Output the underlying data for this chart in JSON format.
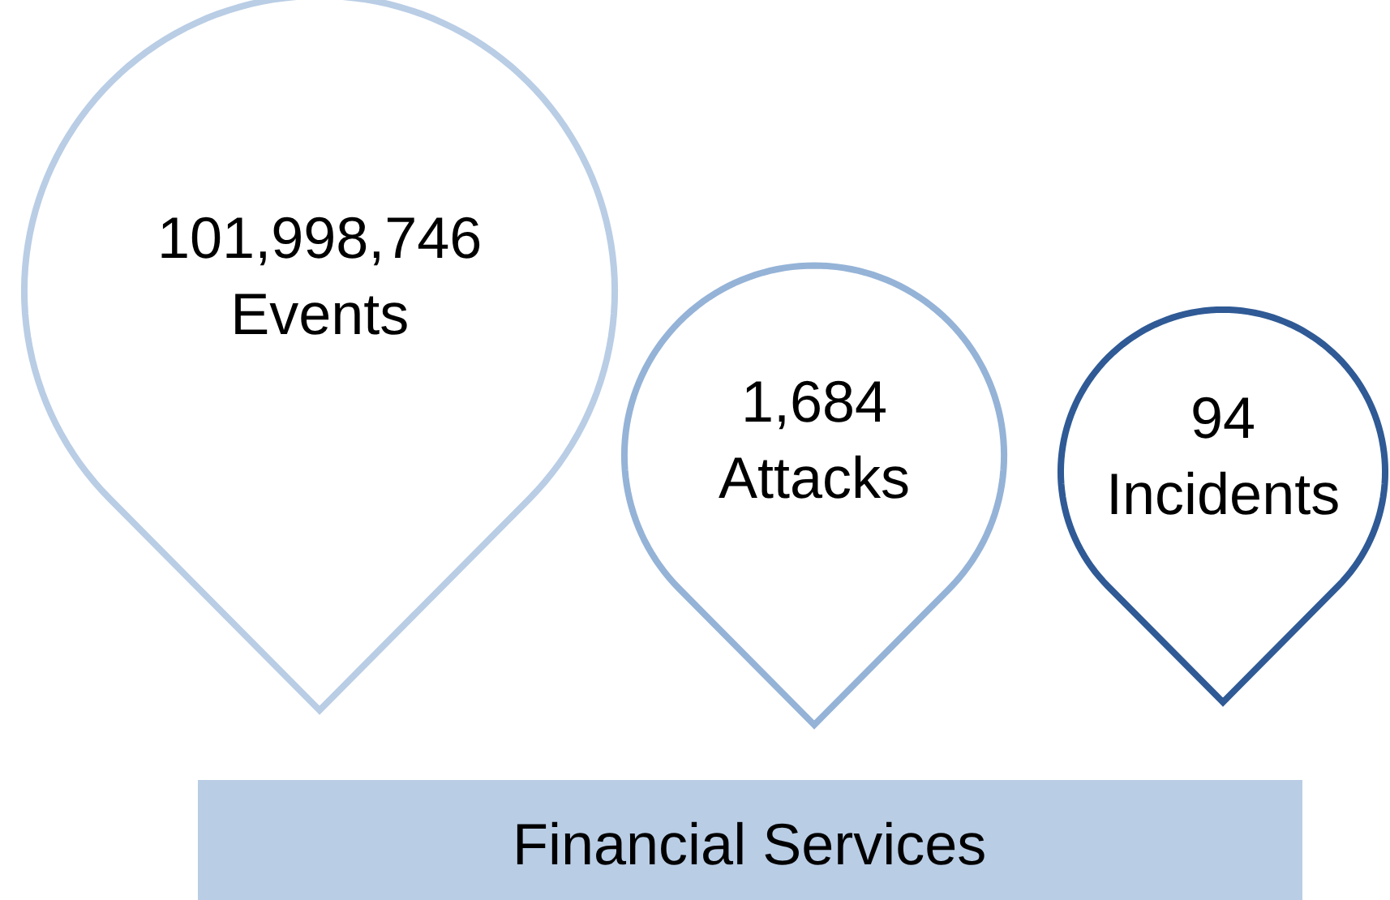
{
  "chart_data": {
    "type": "other",
    "title": "Financial Services",
    "categories": [
      "Events",
      "Attacks",
      "Incidents"
    ],
    "values": [
      101998746,
      1684,
      94
    ],
    "colors": [
      "#b9cde5",
      "#95b3d7",
      "#2f5a95"
    ],
    "value_labels": [
      "101,998,746",
      "1,684",
      "94"
    ]
  }
}
